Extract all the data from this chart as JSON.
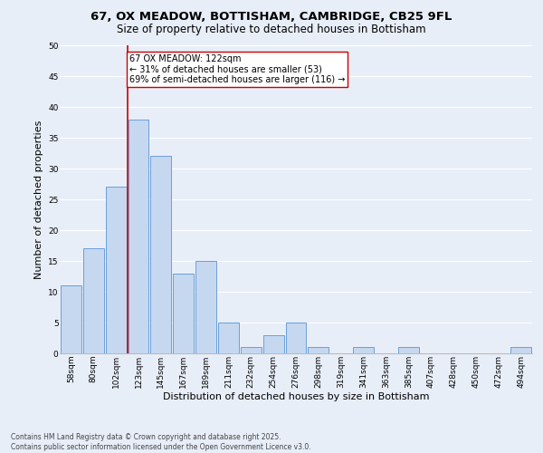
{
  "title_line1": "67, OX MEADOW, BOTTISHAM, CAMBRIDGE, CB25 9FL",
  "title_line2": "Size of property relative to detached houses in Bottisham",
  "xlabel": "Distribution of detached houses by size in Bottisham",
  "ylabel": "Number of detached properties",
  "bar_color": "#c5d8f0",
  "bar_edge_color": "#6a9fd8",
  "background_color": "#e8eef8",
  "grid_color": "#ffffff",
  "bins": [
    "58sqm",
    "80sqm",
    "102sqm",
    "123sqm",
    "145sqm",
    "167sqm",
    "189sqm",
    "211sqm",
    "232sqm",
    "254sqm",
    "276sqm",
    "298sqm",
    "319sqm",
    "341sqm",
    "363sqm",
    "385sqm",
    "407sqm",
    "428sqm",
    "450sqm",
    "472sqm",
    "494sqm"
  ],
  "values": [
    11,
    17,
    27,
    38,
    32,
    13,
    15,
    5,
    1,
    3,
    5,
    1,
    0,
    1,
    0,
    1,
    0,
    0,
    0,
    0,
    1
  ],
  "vline_color": "#cc0000",
  "annotation_text": "67 OX MEADOW: 122sqm\n← 31% of detached houses are smaller (53)\n69% of semi-detached houses are larger (116) →",
  "annotation_box_color": "#ffffff",
  "annotation_box_edge": "#cc0000",
  "ylim": [
    0,
    50
  ],
  "yticks": [
    0,
    5,
    10,
    15,
    20,
    25,
    30,
    35,
    40,
    45,
    50
  ],
  "footnote": "Contains HM Land Registry data © Crown copyright and database right 2025.\nContains public sector information licensed under the Open Government Licence v3.0.",
  "title_fontsize": 9.5,
  "subtitle_fontsize": 8.5,
  "axis_label_fontsize": 8,
  "tick_fontsize": 6.5,
  "annotation_fontsize": 7,
  "footnote_fontsize": 5.5
}
